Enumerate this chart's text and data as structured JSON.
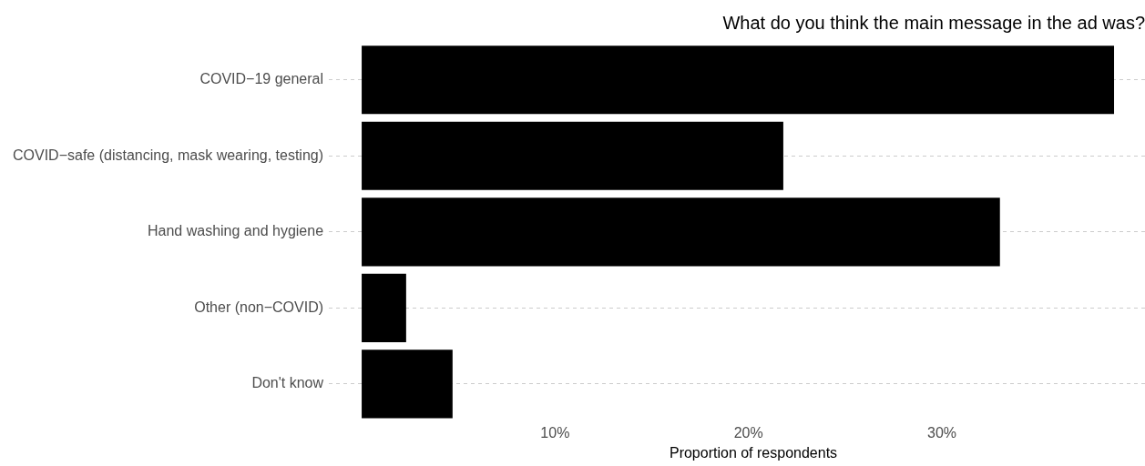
{
  "chart_data": {
    "type": "bar",
    "orientation": "horizontal",
    "title": "What do you think the main message in the ad was?",
    "xlabel": "Proportion of respondents",
    "categories": [
      "COVID−19 general",
      "COVID−safe (distancing, mask wearing, testing)",
      "Hand washing and hygiene",
      "Other (non−COVID)",
      "Don't know"
    ],
    "values": [
      38.9,
      21.8,
      33.0,
      2.3,
      4.7
    ],
    "color": "#000000",
    "xlim": [
      0,
      40.5
    ],
    "xticks": [
      {
        "value": 10,
        "label": "10%"
      },
      {
        "value": 20,
        "label": "20%"
      },
      {
        "value": 30,
        "label": "30%"
      }
    ],
    "grid": "y",
    "legend": false
  }
}
